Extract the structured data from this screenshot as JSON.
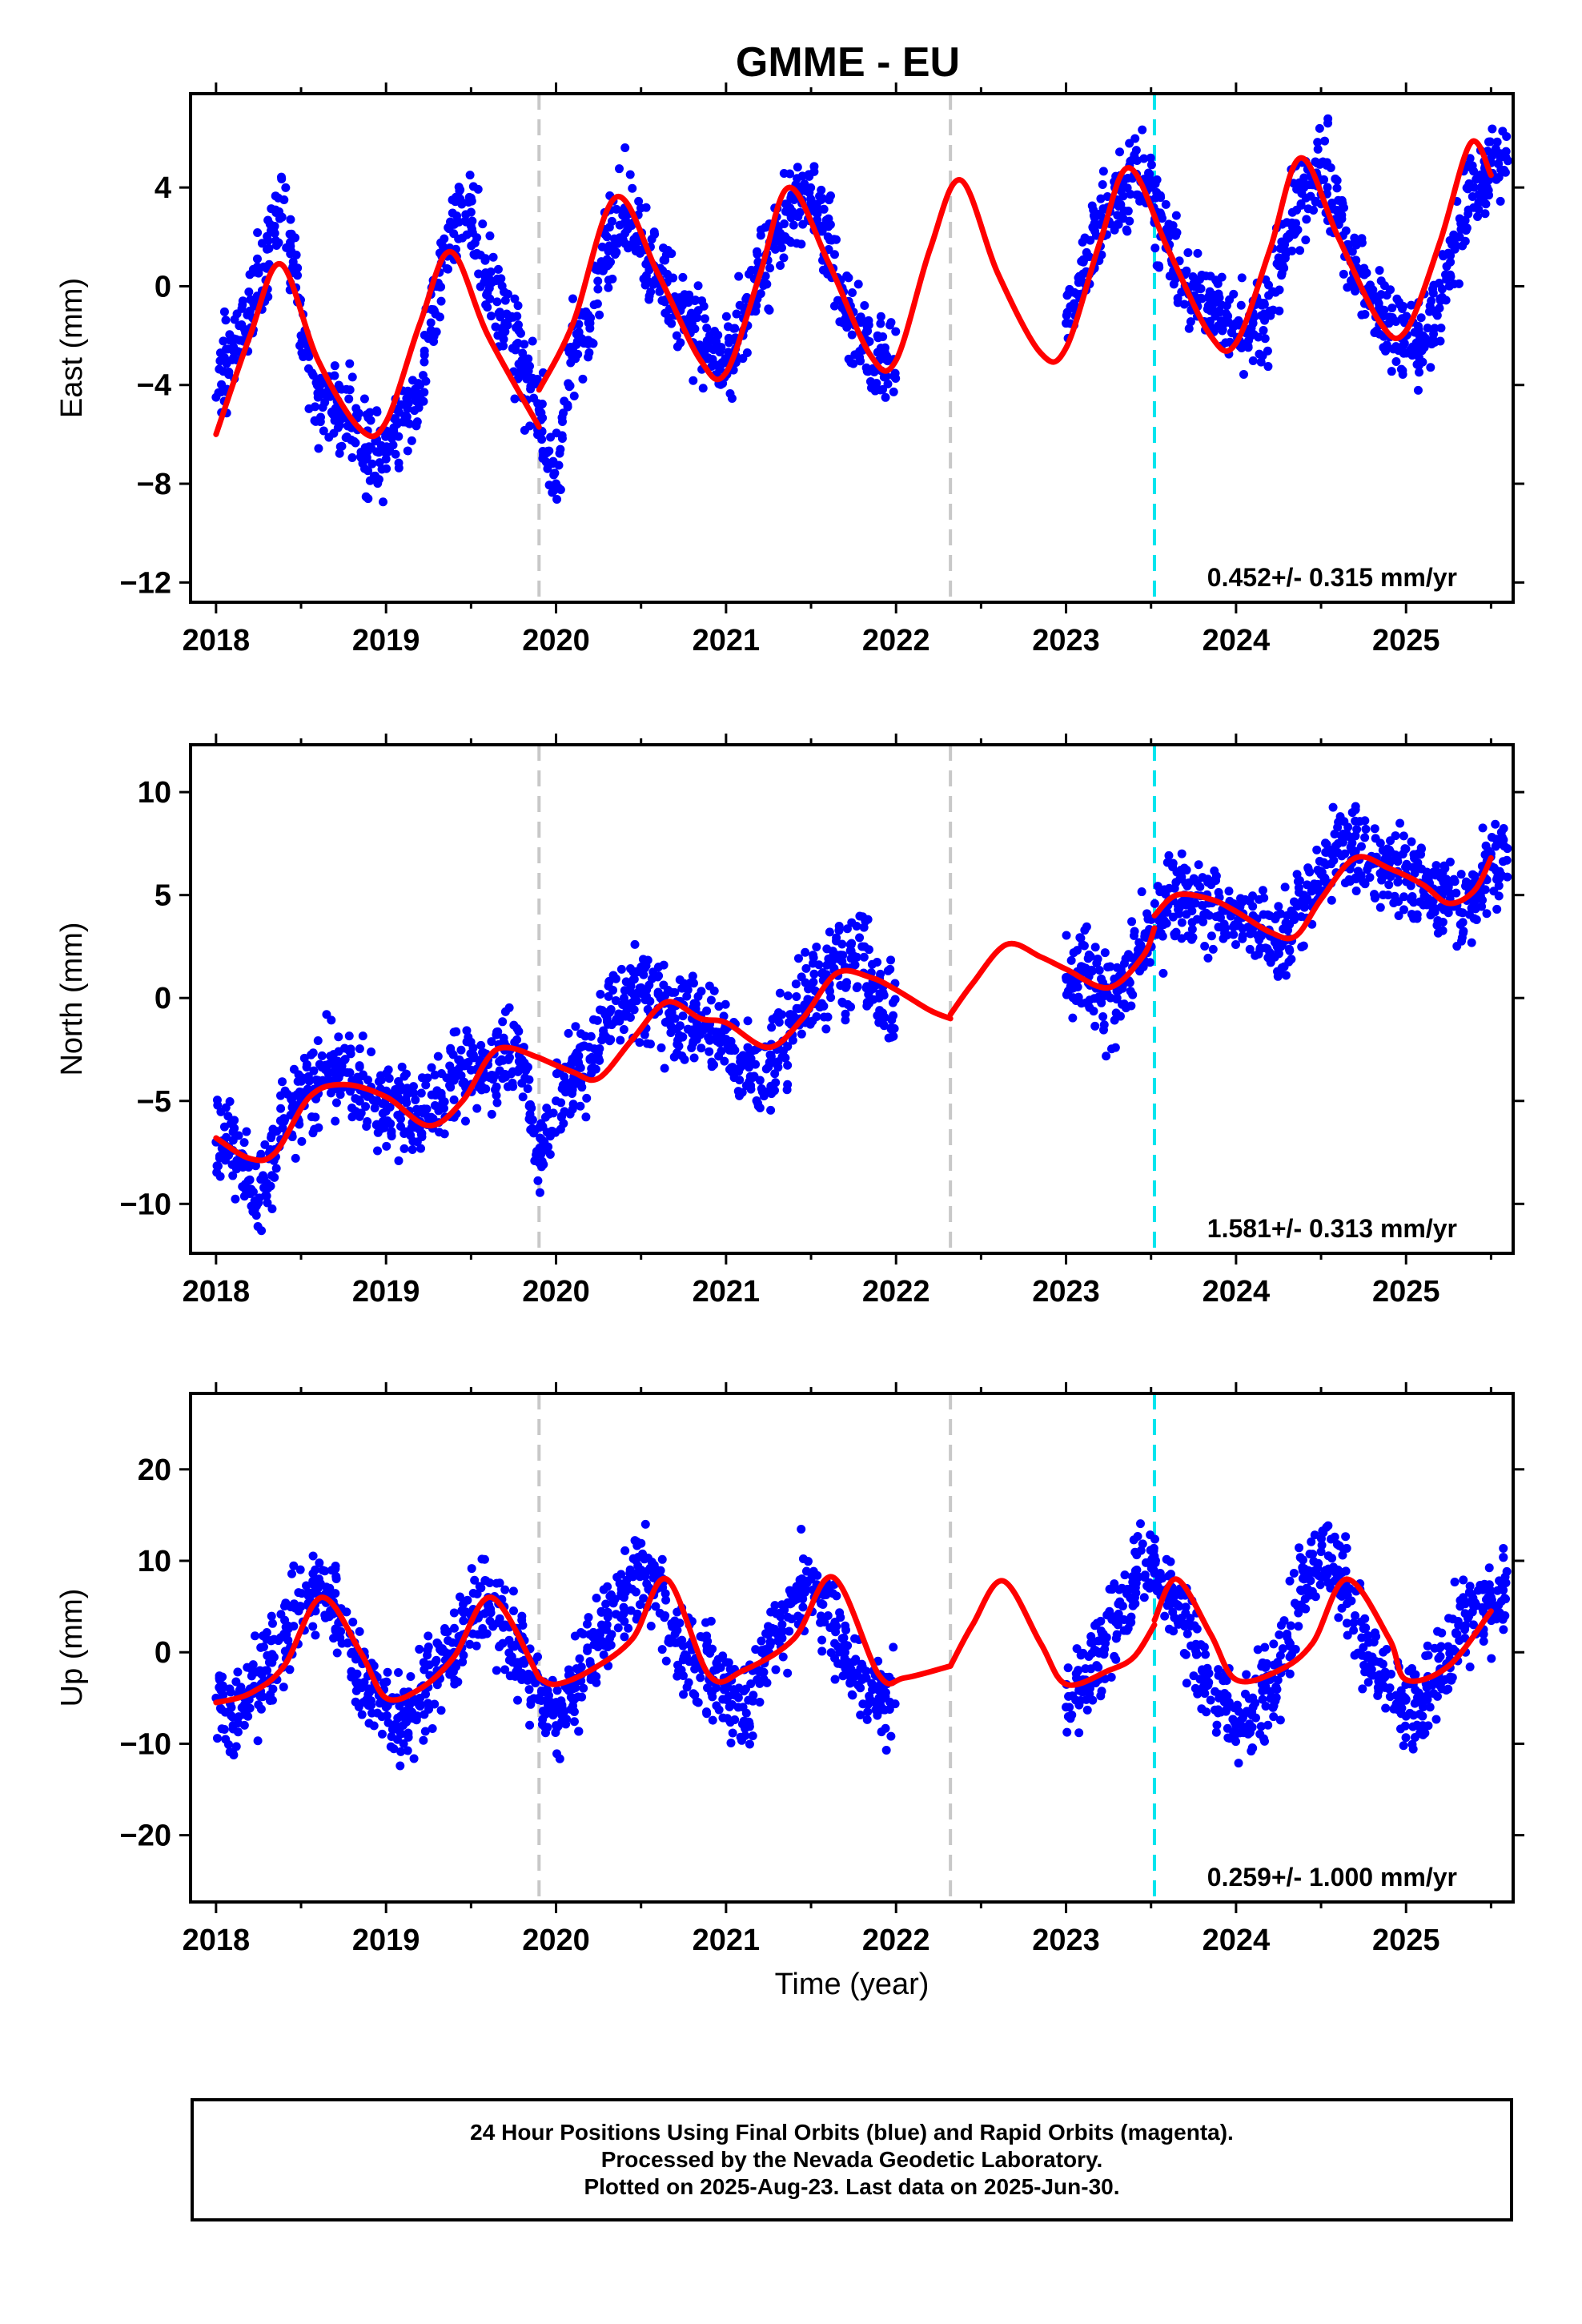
{
  "title": "GMME - EU",
  "colors": {
    "points": "#0000ff",
    "fit": "#ff0000",
    "equipment_change": "#c8c8c8",
    "earthquake": "#00e5ee"
  },
  "x_axis": {
    "label": "Time (year)",
    "range": [
      2017.85,
      2025.63
    ],
    "ticks": [
      "2018",
      "2019",
      "2020",
      "2021",
      "2022",
      "2023",
      "2024",
      "2025"
    ]
  },
  "chart_data": [
    {
      "type": "scatter",
      "ylabel": "East (mm)",
      "xlim": [
        2017.85,
        2025.63
      ],
      "ylim": [
        -12.8,
        7.8
      ],
      "yticks": [
        "4",
        "0",
        "−4",
        "−8",
        "−12"
      ],
      "ytick_values": [
        4,
        0,
        -4,
        -8,
        -12
      ],
      "grid": false,
      "rate_label": "0.452+/- 0.315 mm/yr",
      "series": [
        {
          "role": "daily positions (points)",
          "x": [
            2018.0,
            2018.1,
            2018.2,
            2018.3,
            2018.4,
            2018.5,
            2018.6,
            2018.7,
            2018.8,
            2018.9,
            2019.0,
            2019.1,
            2019.2,
            2019.3,
            2019.4,
            2019.5,
            2019.6,
            2019.7,
            2019.8,
            2019.9,
            2020.0,
            2020.1,
            2020.2,
            2020.3,
            2020.4,
            2020.5,
            2020.6,
            2020.7,
            2020.8,
            2020.9,
            2021.0,
            2021.1,
            2021.2,
            2021.3,
            2021.4,
            2021.5,
            2021.6,
            2021.7,
            2021.8,
            2021.9,
            2023.0,
            2023.1,
            2023.2,
            2023.3,
            2023.4,
            2023.5,
            2023.6,
            2023.7,
            2023.8,
            2023.9,
            2024.0,
            2024.1,
            2024.2,
            2024.3,
            2024.4,
            2024.5,
            2024.6,
            2024.7,
            2024.8,
            2024.9,
            2025.0,
            2025.1,
            2025.2,
            2025.3,
            2025.4,
            2025.5
          ],
          "y": [
            -4.5,
            -2.5,
            -1.0,
            1.5,
            3.5,
            -2.0,
            -4.5,
            -5.0,
            -5.5,
            -6.5,
            -7.0,
            -5.5,
            -4.0,
            0.0,
            2.5,
            3.0,
            0.5,
            -1.5,
            -3.0,
            -5.0,
            -8.0,
            -2.5,
            -1.5,
            2.0,
            3.0,
            2.0,
            0.5,
            -0.5,
            -1.5,
            -2.5,
            -3.5,
            -2.0,
            0.5,
            2.0,
            3.5,
            3.5,
            2.0,
            -1.0,
            -2.0,
            -3.0,
            -1.5,
            0.5,
            2.5,
            3.5,
            4.5,
            4.0,
            1.5,
            0.0,
            -0.5,
            -1.0,
            -1.5,
            -1.5,
            -1.0,
            2.0,
            4.0,
            5.0,
            3.0,
            0.5,
            -0.5,
            -1.5,
            -2.0,
            -2.0,
            -0.5,
            2.0,
            4.0,
            5.0
          ]
        },
        {
          "role": "model fit (line)",
          "x": [
            2018.0,
            2018.2,
            2018.38,
            2018.6,
            2018.85,
            2019.0,
            2019.2,
            2019.38,
            2019.6,
            2019.9
          ],
          "y": [
            -6.0,
            -2.0,
            0.9,
            -3.0,
            -5.8,
            -5.5,
            -1.5,
            1.4,
            -2.0,
            -5.7
          ]
        },
        {
          "role": "model fit (line)",
          "x": [
            2019.9,
            2020.1,
            2020.35,
            2020.6,
            2020.85,
            2021.0,
            2021.2,
            2021.37,
            2021.6,
            2021.85,
            2022.0,
            2022.2,
            2022.38,
            2022.6,
            2022.85,
            2023.0,
            2023.2,
            2023.37,
            2023.6,
            2023.85,
            2024.0,
            2024.2,
            2024.38,
            2024.6,
            2024.85,
            2025.0,
            2025.2,
            2025.38,
            2025.5
          ],
          "y": [
            -4.2,
            -1.5,
            3.6,
            0.5,
            -3.0,
            -3.5,
            0.5,
            4.0,
            1.0,
            -2.8,
            -3.0,
            1.5,
            4.3,
            0.5,
            -2.7,
            -2.5,
            1.8,
            4.8,
            1.5,
            -2.0,
            -2.3,
            1.5,
            5.2,
            2.0,
            -1.5,
            -1.8,
            1.8,
            5.8,
            4.5
          ]
        }
      ]
    },
    {
      "type": "scatter",
      "ylabel": "North (mm)",
      "xlim": [
        2017.85,
        2025.63
      ],
      "ylim": [
        -12.4,
        12.3
      ],
      "yticks": [
        "10",
        "5",
        "0",
        "−5",
        "−10"
      ],
      "ytick_values": [
        10,
        5,
        0,
        -5,
        -10
      ],
      "grid": false,
      "rate_label": "1.581+/- 0.313 mm/yr",
      "series": [
        {
          "role": "daily positions (points)",
          "x": [
            2018.0,
            2018.1,
            2018.2,
            2018.3,
            2018.4,
            2018.5,
            2018.6,
            2018.7,
            2018.8,
            2018.9,
            2019.0,
            2019.1,
            2019.2,
            2019.3,
            2019.4,
            2019.5,
            2019.6,
            2019.7,
            2019.8,
            2019.9,
            2020.0,
            2020.1,
            2020.2,
            2020.3,
            2020.4,
            2020.5,
            2020.6,
            2020.7,
            2020.8,
            2020.9,
            2021.0,
            2021.1,
            2021.2,
            2021.3,
            2021.4,
            2021.5,
            2021.6,
            2021.7,
            2021.8,
            2021.9,
            2023.0,
            2023.1,
            2023.2,
            2023.3,
            2023.4,
            2023.5,
            2023.6,
            2023.7,
            2023.8,
            2023.9,
            2024.0,
            2024.1,
            2024.2,
            2024.3,
            2024.4,
            2024.5,
            2024.6,
            2024.7,
            2024.8,
            2024.9,
            2025.0,
            2025.1,
            2025.2,
            2025.3,
            2025.4,
            2025.5
          ],
          "y": [
            -7.0,
            -6.5,
            -9.5,
            -9.0,
            -6.0,
            -5.0,
            -4.0,
            -3.5,
            -4.0,
            -4.5,
            -5.5,
            -5.5,
            -6.0,
            -4.5,
            -4.0,
            -3.5,
            -3.0,
            -2.5,
            -3.0,
            -8.0,
            -5.0,
            -4.0,
            -3.0,
            -1.0,
            0.0,
            0.5,
            -0.5,
            -1.0,
            -1.0,
            -1.5,
            -2.0,
            -3.0,
            -4.0,
            -2.5,
            -1.0,
            0.5,
            1.0,
            1.5,
            2.5,
            0.0,
            1.0,
            1.5,
            0.5,
            0.0,
            1.5,
            3.0,
            4.5,
            5.0,
            4.5,
            4.0,
            3.5,
            4.0,
            3.0,
            3.5,
            4.5,
            6.0,
            7.5,
            7.0,
            6.5,
            6.5,
            6.0,
            5.5,
            5.0,
            4.5,
            5.0,
            7.0
          ]
        },
        {
          "role": "model fit (line)",
          "x": [
            2018.0,
            2018.2,
            2018.35,
            2018.55,
            2018.75,
            2019.0,
            2019.25,
            2019.45,
            2019.65,
            2019.9
          ],
          "y": [
            -6.8,
            -7.8,
            -7.5,
            -4.8,
            -4.2,
            -4.8,
            -6.2,
            -5.0,
            -2.5,
            -2.9
          ]
        },
        {
          "role": "model fit (line)",
          "x": [
            2019.9,
            2020.1,
            2020.25,
            2020.45,
            2020.65,
            2020.85,
            2021.0,
            2021.25,
            2021.45,
            2021.65,
            2021.85,
            2022.0,
            2022.2,
            2022.32
          ],
          "y": [
            -2.9,
            -3.6,
            -3.9,
            -2.0,
            -0.2,
            -1.0,
            -1.2,
            -2.4,
            -1.0,
            1.2,
            1.0,
            0.4,
            -0.6,
            -1.0
          ]
        },
        {
          "role": "model fit (line)",
          "x": [
            2022.32,
            2022.45,
            2022.65,
            2022.85,
            2023.0,
            2023.25,
            2023.45,
            2023.52
          ],
          "y": [
            -0.8,
            0.7,
            2.6,
            2.0,
            1.4,
            0.5,
            2.0,
            3.4
          ]
        },
        {
          "role": "model fit (line)",
          "x": [
            2023.52,
            2023.65,
            2023.85,
            2024.0,
            2024.2,
            2024.35,
            2024.5,
            2024.7,
            2024.9,
            2025.1,
            2025.25,
            2025.4,
            2025.5
          ],
          "y": [
            4.0,
            5.0,
            4.8,
            4.2,
            3.2,
            3.0,
            4.8,
            6.8,
            6.3,
            5.5,
            4.6,
            5.2,
            6.8
          ]
        }
      ]
    },
    {
      "type": "scatter",
      "ylabel": "Up (mm)",
      "xlim": [
        2017.85,
        2025.63
      ],
      "ylim": [
        -27.3,
        28.3
      ],
      "yticks": [
        "20",
        "10",
        "0",
        "−10",
        "−20"
      ],
      "ytick_values": [
        20,
        10,
        0,
        -10,
        -20
      ],
      "grid": false,
      "rate_label": "0.259+/- 1.000 mm/yr",
      "series": [
        {
          "role": "daily positions (points)",
          "x": [
            2018.0,
            2018.1,
            2018.2,
            2018.3,
            2018.4,
            2018.5,
            2018.6,
            2018.7,
            2018.8,
            2018.9,
            2019.0,
            2019.1,
            2019.2,
            2019.3,
            2019.4,
            2019.5,
            2019.6,
            2019.7,
            2019.8,
            2019.9,
            2020.0,
            2020.1,
            2020.2,
            2020.3,
            2020.4,
            2020.5,
            2020.6,
            2020.7,
            2020.8,
            2020.9,
            2021.0,
            2021.1,
            2021.2,
            2021.3,
            2021.4,
            2021.5,
            2021.6,
            2021.7,
            2021.8,
            2021.9,
            2023.0,
            2023.1,
            2023.2,
            2023.3,
            2023.4,
            2023.5,
            2023.6,
            2023.7,
            2023.8,
            2023.9,
            2024.0,
            2024.1,
            2024.2,
            2024.3,
            2024.4,
            2024.5,
            2024.6,
            2024.7,
            2024.8,
            2024.9,
            2025.0,
            2025.1,
            2025.2,
            2025.3,
            2025.4,
            2025.5
          ],
          "y": [
            -5.0,
            -8.0,
            -4.0,
            -2.0,
            2.0,
            5.0,
            7.0,
            5.0,
            0.0,
            -4.0,
            -6.0,
            -8.0,
            -5.0,
            -2.0,
            0.0,
            4.0,
            6.0,
            3.0,
            -1.0,
            -5.0,
            -8.0,
            -4.0,
            -1.0,
            3.0,
            6.0,
            9.0,
            7.0,
            2.0,
            -1.0,
            -3.0,
            -4.0,
            -6.0,
            -2.0,
            2.0,
            6.0,
            8.0,
            4.0,
            0.0,
            -3.0,
            -5.0,
            -6.0,
            -3.0,
            0.0,
            4.0,
            8.0,
            10.0,
            7.0,
            3.0,
            -2.0,
            -5.0,
            -8.0,
            -6.0,
            -3.0,
            2.0,
            8.0,
            11.0,
            9.0,
            4.0,
            -1.0,
            -4.0,
            -7.0,
            -6.0,
            -2.0,
            2.0,
            5.0,
            6.0
          ]
        },
        {
          "role": "model fit (line)",
          "x": [
            2018.0,
            2018.2,
            2018.4,
            2018.62,
            2018.85,
            2019.0,
            2019.2,
            2019.4,
            2019.62,
            2019.9
          ],
          "y": [
            -5.5,
            -4.5,
            -1.5,
            6.0,
            0.0,
            -5.0,
            -4.0,
            -0.5,
            6.0,
            -2.8
          ]
        },
        {
          "role": "model fit (line)",
          "x": [
            2019.9,
            2020.0,
            2020.2,
            2020.45,
            2020.65,
            2020.9,
            2021.1,
            2021.4,
            2021.63,
            2021.9,
            2022.05,
            2022.32
          ],
          "y": [
            -2.8,
            -3.5,
            -2.0,
            1.5,
            8.0,
            -2.5,
            -2.0,
            1.5,
            8.2,
            -2.5,
            -2.8,
            -1.5
          ]
        },
        {
          "role": "model fit (line)",
          "x": [
            2022.32,
            2022.45,
            2022.63,
            2022.85,
            2023.0,
            2023.25,
            2023.4,
            2023.52
          ],
          "y": [
            -1.5,
            3.0,
            7.8,
            1.0,
            -3.5,
            -2.0,
            -0.5,
            3.0
          ]
        },
        {
          "role": "model fit (line)",
          "x": [
            2023.52,
            2023.65,
            2023.85,
            2024.0,
            2024.25,
            2024.45,
            2024.65,
            2024.9,
            2025.0,
            2025.25,
            2025.5
          ],
          "y": [
            3.5,
            8.0,
            2.0,
            -3.0,
            -2.0,
            1.0,
            8.0,
            1.5,
            -3.0,
            -1.5,
            4.5
          ]
        }
      ],
      "xlabel": "Time (year)"
    }
  ],
  "events": {
    "equipment_changes": [
      2019.9,
      2022.32
    ],
    "earthquakes": [
      2023.52
    ]
  },
  "footer": {
    "line1": "24 Hour Positions Using Final Orbits (blue) and Rapid Orbits (magenta).",
    "line2": "Processed by the Nevada Geodetic Laboratory.",
    "line3": "Plotted on 2025-Aug-23. Last data on 2025-Jun-30."
  }
}
